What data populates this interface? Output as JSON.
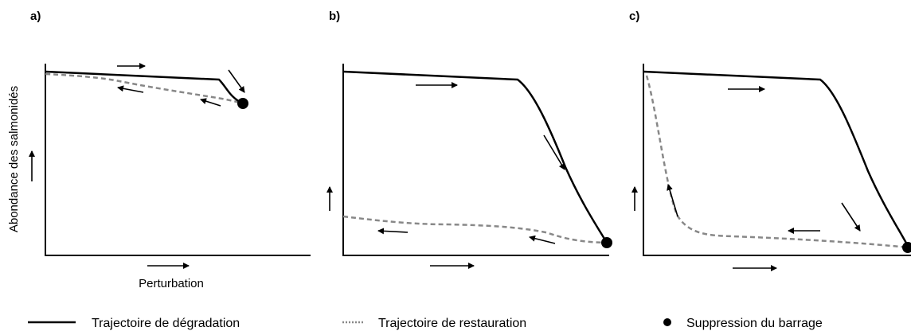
{
  "panels": [
    {
      "label": "a)"
    },
    {
      "label": "b)"
    },
    {
      "label": "c)"
    }
  ],
  "y_axis_label": "Abondance des salmonidés",
  "x_axis_label": "Perturbation",
  "legend": [
    {
      "label": "Trajectoire de dégradation"
    },
    {
      "label": "Trajectoire de restauration"
    },
    {
      "label": "Suppression du barrage"
    }
  ]
}
